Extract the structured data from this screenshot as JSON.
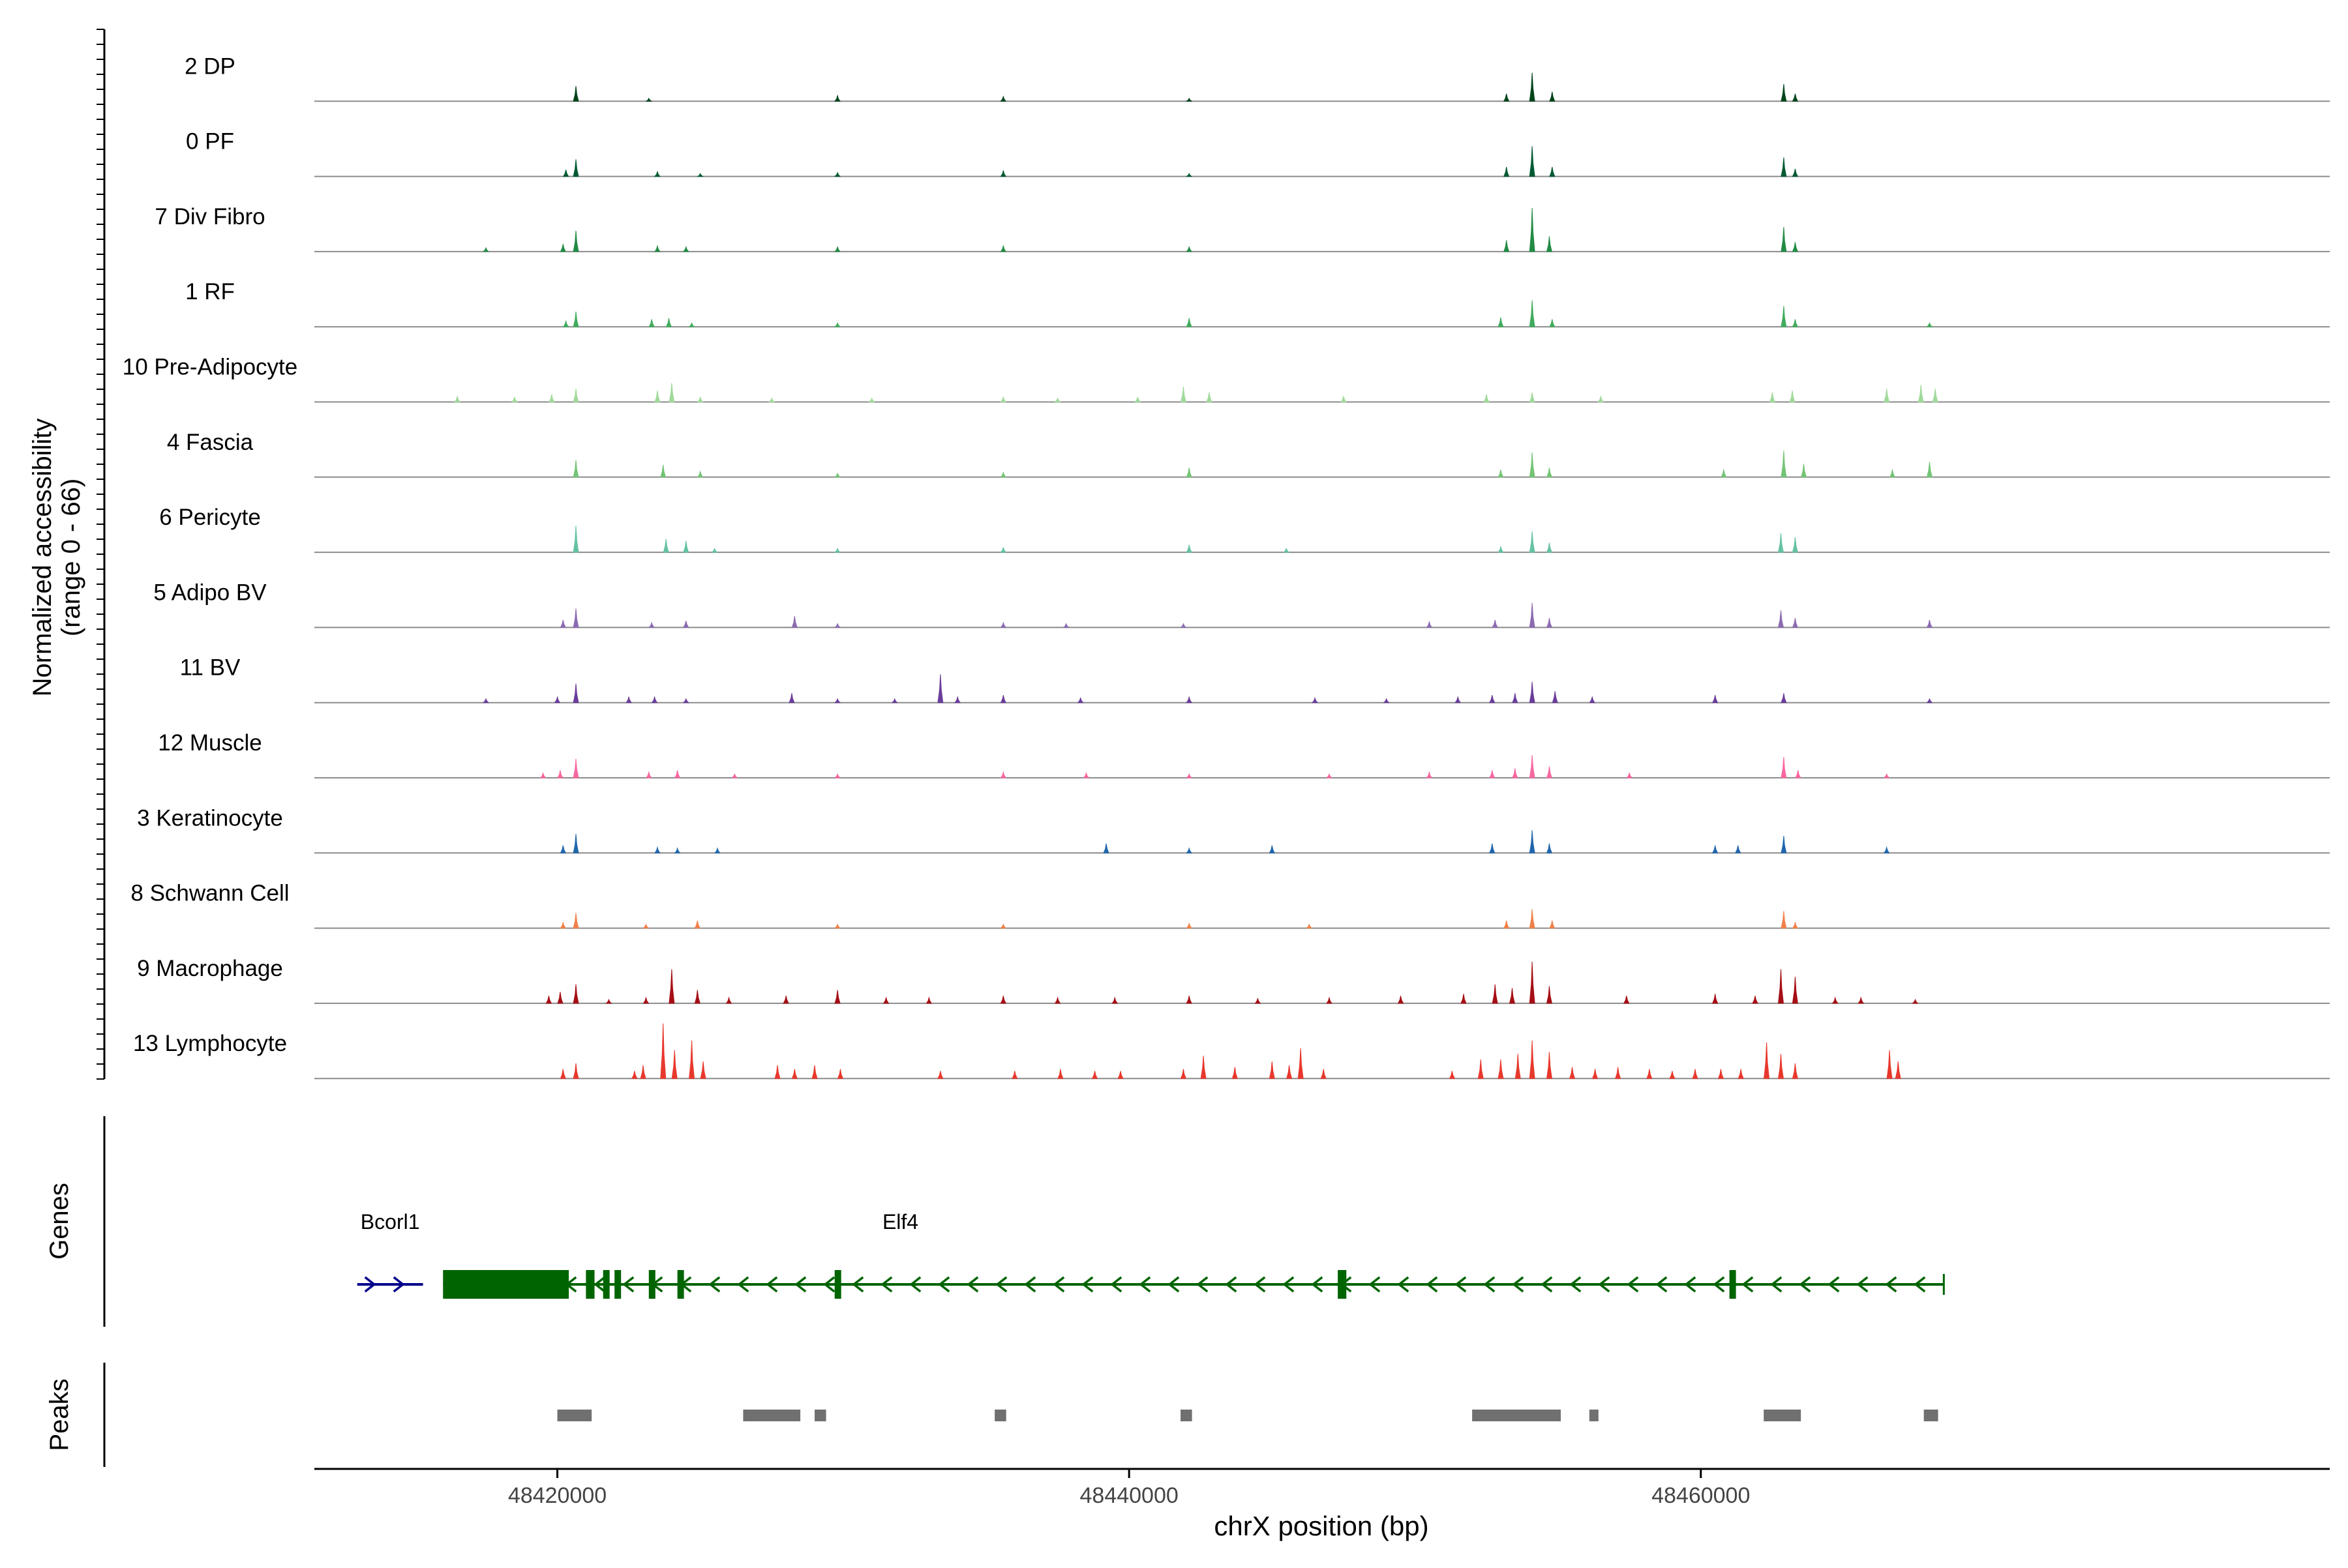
{
  "chart_data": {
    "type": "area",
    "title": "",
    "ylabel_lines": [
      "Normalized accessibility",
      "(range 0 - 66)"
    ],
    "ylim": [
      0,
      66
    ],
    "xlabel": "chrX position (bp)",
    "xlim": [
      48411500,
      48482000
    ],
    "xticks": [
      48420000,
      48440000,
      48460000
    ],
    "xtick_labels": [
      "48420000",
      "48440000",
      "48460000"
    ],
    "peak_positions": [
      48420650,
      48424000,
      48429800,
      48435600,
      48442100,
      48452700,
      48454100,
      48462900,
      48468000
    ],
    "series": [
      {
        "name": "2 DP",
        "color": "#00441b",
        "peaks": [
          [
            48420650,
            16
          ],
          [
            48423200,
            3
          ],
          [
            48429800,
            6
          ],
          [
            48435600,
            5
          ],
          [
            48442100,
            3
          ],
          [
            48453200,
            8
          ],
          [
            48454100,
            30
          ],
          [
            48454800,
            10
          ],
          [
            48462900,
            18
          ],
          [
            48463300,
            8
          ]
        ]
      },
      {
        "name": "0 PF",
        "color": "#005a32",
        "peaks": [
          [
            48420650,
            18
          ],
          [
            48420300,
            7
          ],
          [
            48423500,
            5
          ],
          [
            48425000,
            3
          ],
          [
            48429800,
            4
          ],
          [
            48435600,
            6
          ],
          [
            48442100,
            3
          ],
          [
            48453200,
            10
          ],
          [
            48454100,
            32
          ],
          [
            48454800,
            10
          ],
          [
            48462900,
            20
          ],
          [
            48463300,
            8
          ]
        ]
      },
      {
        "name": "7 Div Fibro",
        "color": "#238b45",
        "peaks": [
          [
            48420650,
            22
          ],
          [
            48420200,
            8
          ],
          [
            48417500,
            4
          ],
          [
            48423500,
            6
          ],
          [
            48424500,
            5
          ],
          [
            48429800,
            5
          ],
          [
            48435600,
            6
          ],
          [
            48442100,
            5
          ],
          [
            48453200,
            12
          ],
          [
            48454100,
            46
          ],
          [
            48454700,
            16
          ],
          [
            48462900,
            26
          ],
          [
            48463300,
            10
          ]
        ]
      },
      {
        "name": "1 RF",
        "color": "#41ab5d",
        "peaks": [
          [
            48420650,
            16
          ],
          [
            48420300,
            6
          ],
          [
            48423300,
            8
          ],
          [
            48423900,
            9
          ],
          [
            48424700,
            4
          ],
          [
            48429800,
            4
          ],
          [
            48442100,
            9
          ],
          [
            48453000,
            10
          ],
          [
            48454100,
            28
          ],
          [
            48454800,
            8
          ],
          [
            48462900,
            22
          ],
          [
            48463300,
            8
          ],
          [
            48468000,
            4
          ]
        ]
      },
      {
        "name": "10 Pre-Adipocyte",
        "color": "#a1d99b",
        "peaks": [
          [
            48420650,
            14
          ],
          [
            48419800,
            8
          ],
          [
            48416500,
            6
          ],
          [
            48418500,
            5
          ],
          [
            48423500,
            12
          ],
          [
            48424000,
            20
          ],
          [
            48425000,
            5
          ],
          [
            48427500,
            4
          ],
          [
            48431000,
            4
          ],
          [
            48435600,
            5
          ],
          [
            48437500,
            4
          ],
          [
            48440300,
            5
          ],
          [
            48441900,
            16
          ],
          [
            48442800,
            10
          ],
          [
            48447500,
            6
          ],
          [
            48452500,
            8
          ],
          [
            48454100,
            10
          ],
          [
            48456500,
            6
          ],
          [
            48462500,
            10
          ],
          [
            48463200,
            12
          ],
          [
            48466500,
            14
          ],
          [
            48467700,
            18
          ],
          [
            48468200,
            14
          ]
        ]
      },
      {
        "name": "4 Fascia",
        "color": "#74c476",
        "peaks": [
          [
            48420650,
            18
          ],
          [
            48423700,
            13
          ],
          [
            48425000,
            6
          ],
          [
            48429800,
            4
          ],
          [
            48435600,
            5
          ],
          [
            48442100,
            10
          ],
          [
            48453000,
            8
          ],
          [
            48454100,
            26
          ],
          [
            48454700,
            10
          ],
          [
            48460800,
            8
          ],
          [
            48462900,
            28
          ],
          [
            48463600,
            14
          ],
          [
            48466700,
            8
          ],
          [
            48468000,
            16
          ]
        ]
      },
      {
        "name": "6 Pericyte",
        "color": "#66c2a4",
        "peaks": [
          [
            48420650,
            28
          ],
          [
            48423800,
            14
          ],
          [
            48424500,
            12
          ],
          [
            48425500,
            4
          ],
          [
            48429800,
            4
          ],
          [
            48435600,
            5
          ],
          [
            48442100,
            8
          ],
          [
            48445500,
            4
          ],
          [
            48453000,
            6
          ],
          [
            48454100,
            22
          ],
          [
            48454700,
            10
          ],
          [
            48462800,
            20
          ],
          [
            48463300,
            16
          ]
        ]
      },
      {
        "name": "5 Adipo BV",
        "color": "#8c6bb1",
        "peaks": [
          [
            48420650,
            20
          ],
          [
            48420200,
            8
          ],
          [
            48423300,
            5
          ],
          [
            48424500,
            7
          ],
          [
            48428300,
            12
          ],
          [
            48429800,
            4
          ],
          [
            48435600,
            5
          ],
          [
            48437800,
            4
          ],
          [
            48441900,
            4
          ],
          [
            48450500,
            6
          ],
          [
            48452800,
            8
          ],
          [
            48454100,
            26
          ],
          [
            48454700,
            10
          ],
          [
            48462800,
            18
          ],
          [
            48463300,
            10
          ],
          [
            48468000,
            8
          ]
        ]
      },
      {
        "name": "11 BV",
        "color": "#6a3d9a",
        "peaks": [
          [
            48420650,
            20
          ],
          [
            48417500,
            4
          ],
          [
            48420000,
            6
          ],
          [
            48422500,
            6
          ],
          [
            48423400,
            6
          ],
          [
            48424500,
            4
          ],
          [
            48428200,
            10
          ],
          [
            48429800,
            4
          ],
          [
            48431800,
            4
          ],
          [
            48433400,
            30
          ],
          [
            48434000,
            6
          ],
          [
            48435600,
            8
          ],
          [
            48438300,
            5
          ],
          [
            48442100,
            6
          ],
          [
            48446500,
            5
          ],
          [
            48449000,
            4
          ],
          [
            48451500,
            6
          ],
          [
            48452700,
            8
          ],
          [
            48453500,
            10
          ],
          [
            48454100,
            22
          ],
          [
            48454900,
            12
          ],
          [
            48456200,
            6
          ],
          [
            48460500,
            8
          ],
          [
            48462900,
            10
          ],
          [
            48468000,
            4
          ]
        ]
      },
      {
        "name": "12 Muscle",
        "color": "#f768a1",
        "peaks": [
          [
            48420650,
            20
          ],
          [
            48419500,
            5
          ],
          [
            48420100,
            8
          ],
          [
            48423200,
            6
          ],
          [
            48424200,
            8
          ],
          [
            48426200,
            4
          ],
          [
            48429800,
            4
          ],
          [
            48435600,
            6
          ],
          [
            48438500,
            5
          ],
          [
            48442100,
            4
          ],
          [
            48447000,
            4
          ],
          [
            48450500,
            6
          ],
          [
            48452700,
            8
          ],
          [
            48453500,
            10
          ],
          [
            48454100,
            24
          ],
          [
            48454700,
            12
          ],
          [
            48457500,
            5
          ],
          [
            48462900,
            22
          ],
          [
            48463400,
            8
          ],
          [
            48466500,
            4
          ]
        ]
      },
      {
        "name": "3 Keratinocyte",
        "color": "#2166ac",
        "peaks": [
          [
            48420650,
            20
          ],
          [
            48420200,
            8
          ],
          [
            48423500,
            6
          ],
          [
            48424200,
            5
          ],
          [
            48425600,
            5
          ],
          [
            48439200,
            10
          ],
          [
            48442100,
            5
          ],
          [
            48445000,
            8
          ],
          [
            48452700,
            10
          ],
          [
            48454100,
            24
          ],
          [
            48454700,
            10
          ],
          [
            48460500,
            8
          ],
          [
            48461300,
            8
          ],
          [
            48462900,
            18
          ],
          [
            48466500,
            6
          ]
        ]
      },
      {
        "name": "8 Schwann Cell",
        "color": "#f0804a",
        "peaks": [
          [
            48420650,
            16
          ],
          [
            48420200,
            6
          ],
          [
            48423100,
            4
          ],
          [
            48424900,
            8
          ],
          [
            48429800,
            4
          ],
          [
            48435600,
            4
          ],
          [
            48442100,
            5
          ],
          [
            48446300,
            4
          ],
          [
            48453200,
            8
          ],
          [
            48454100,
            20
          ],
          [
            48454800,
            8
          ],
          [
            48462900,
            18
          ],
          [
            48463300,
            6
          ]
        ]
      },
      {
        "name": "9 Macrophage",
        "color": "#a50f15",
        "peaks": [
          [
            48420650,
            20
          ],
          [
            48419700,
            8
          ],
          [
            48420100,
            12
          ],
          [
            48421800,
            4
          ],
          [
            48423100,
            6
          ],
          [
            48424000,
            36
          ],
          [
            48424900,
            14
          ],
          [
            48426000,
            6
          ],
          [
            48428000,
            8
          ],
          [
            48429800,
            14
          ],
          [
            48431500,
            6
          ],
          [
            48433000,
            6
          ],
          [
            48435600,
            8
          ],
          [
            48437500,
            6
          ],
          [
            48439500,
            6
          ],
          [
            48442100,
            8
          ],
          [
            48444500,
            5
          ],
          [
            48447000,
            6
          ],
          [
            48449500,
            8
          ],
          [
            48451700,
            10
          ],
          [
            48452800,
            20
          ],
          [
            48453400,
            16
          ],
          [
            48454100,
            44
          ],
          [
            48454700,
            18
          ],
          [
            48457400,
            8
          ],
          [
            48460500,
            10
          ],
          [
            48461900,
            8
          ],
          [
            48462800,
            36
          ],
          [
            48463300,
            28
          ],
          [
            48464700,
            6
          ],
          [
            48465600,
            6
          ],
          [
            48467500,
            4
          ]
        ]
      },
      {
        "name": "13 Lymphocyte",
        "color": "#e8382d",
        "peaks": [
          [
            48420650,
            16
          ],
          [
            48420200,
            10
          ],
          [
            48422700,
            8
          ],
          [
            48423000,
            14
          ],
          [
            48423700,
            58
          ],
          [
            48424100,
            30
          ],
          [
            48424700,
            40
          ],
          [
            48425100,
            18
          ],
          [
            48427700,
            14
          ],
          [
            48428300,
            10
          ],
          [
            48429000,
            14
          ],
          [
            48429900,
            10
          ],
          [
            48433400,
            8
          ],
          [
            48436000,
            8
          ],
          [
            48437600,
            10
          ],
          [
            48438800,
            8
          ],
          [
            48439700,
            8
          ],
          [
            48441900,
            10
          ],
          [
            48442600,
            24
          ],
          [
            48443700,
            12
          ],
          [
            48445000,
            18
          ],
          [
            48445600,
            14
          ],
          [
            48446000,
            32
          ],
          [
            48446800,
            10
          ],
          [
            48451300,
            8
          ],
          [
            48452300,
            20
          ],
          [
            48453000,
            20
          ],
          [
            48453600,
            26
          ],
          [
            48454100,
            40
          ],
          [
            48454700,
            28
          ],
          [
            48455500,
            12
          ],
          [
            48456300,
            10
          ],
          [
            48457100,
            12
          ],
          [
            48458200,
            10
          ],
          [
            48459000,
            8
          ],
          [
            48459800,
            10
          ],
          [
            48460700,
            10
          ],
          [
            48461400,
            10
          ],
          [
            48462300,
            38
          ],
          [
            48462800,
            26
          ],
          [
            48463300,
            16
          ],
          [
            48466600,
            30
          ],
          [
            48466900,
            18
          ]
        ]
      }
    ],
    "tracks": [
      "Genes",
      "Peaks"
    ],
    "genes": [
      {
        "name": "Bcorl1",
        "strand": "+",
        "color": "#00008b",
        "start": 48413000,
        "end": 48415300,
        "exons": []
      },
      {
        "name": "Elf4",
        "strand": "-",
        "color": "#006400",
        "start": 48416000,
        "end": 48468500,
        "exons": [
          [
            48416000,
            48420400,
            10
          ],
          [
            48421000,
            48421300,
            10
          ],
          [
            48421600,
            48421800,
            10
          ],
          [
            48422000,
            48422200,
            10
          ],
          [
            48423200,
            48423400,
            10
          ],
          [
            48424200,
            48424400,
            10
          ],
          [
            48429700,
            48429900,
            10
          ],
          [
            48447300,
            48447600,
            10
          ],
          [
            48461000,
            48461200,
            10
          ]
        ]
      }
    ],
    "peaks_track": [
      [
        48420000,
        48421200
      ],
      [
        48426500,
        48428500
      ],
      [
        48429000,
        48429400
      ],
      [
        48435300,
        48435700
      ],
      [
        48441800,
        48442200
      ],
      [
        48452000,
        48455100
      ],
      [
        48456100,
        48456400
      ],
      [
        48462200,
        48463500
      ],
      [
        48467800,
        48468300
      ]
    ],
    "grid": false,
    "legend": "none"
  }
}
